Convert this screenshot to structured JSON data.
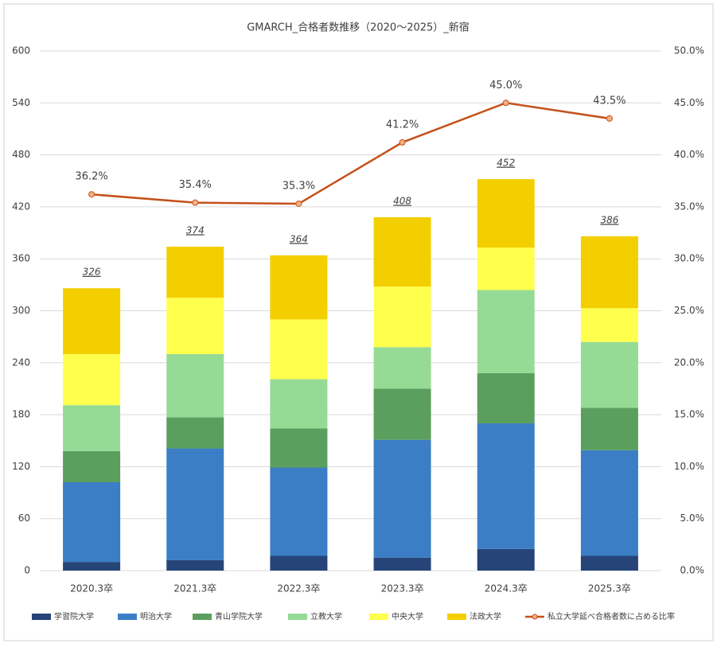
{
  "chart_data": {
    "type": "bar",
    "stacked": true,
    "title": "GMARCH_合格者数推移（2020～2025）_新宿",
    "categories": [
      "2020.3卒",
      "2021.3卒",
      "2022.3卒",
      "2023.3卒",
      "2024.3卒",
      "2025.3卒"
    ],
    "series": [
      {
        "name": "学習院大学",
        "color": "#264478",
        "values": [
          10,
          12,
          17,
          15,
          25,
          17
        ]
      },
      {
        "name": "明治大学",
        "color": "#3b7ec6",
        "values": [
          92,
          129,
          102,
          136,
          145,
          122
        ]
      },
      {
        "name": "青山学院大学",
        "color": "#5a9f5e",
        "values": [
          36,
          36,
          45,
          59,
          58,
          49
        ]
      },
      {
        "name": "立教大学",
        "color": "#95db95",
        "values": [
          53,
          73,
          57,
          48,
          96,
          76
        ]
      },
      {
        "name": "中央大学",
        "color": "#ffff4d",
        "values": [
          59,
          65,
          69,
          70,
          49,
          39
        ]
      },
      {
        "name": "法政大学",
        "color": "#f3cf00",
        "values": [
          76,
          59,
          74,
          80,
          79,
          83
        ]
      },
      {
        "name": "私立大学延べ合格者数に占める比率",
        "color": "#c5511b",
        "type": "line",
        "axis": "y2",
        "values": [
          36.2,
          35.4,
          35.3,
          41.2,
          45.0,
          43.5
        ],
        "value_labels": [
          "36.2%",
          "35.4%",
          "35.3%",
          "41.2%",
          "45.0%",
          "43.5%"
        ]
      }
    ],
    "totals": [
      326,
      374,
      364,
      408,
      452,
      386
    ],
    "ylim": [
      0,
      600
    ],
    "yticks": [
      0,
      60,
      120,
      180,
      240,
      300,
      360,
      420,
      480,
      540,
      600
    ],
    "y2lim": [
      0,
      50
    ],
    "y2ticks": [
      {
        "value": 0,
        "label": "0.0%"
      },
      {
        "value": 5,
        "label": "5.0%"
      },
      {
        "value": 10,
        "label": "10.0%"
      },
      {
        "value": 15,
        "label": "15.0%"
      },
      {
        "value": 20,
        "label": "20.0%"
      },
      {
        "value": 25,
        "label": "25.0%"
      },
      {
        "value": 30,
        "label": "30.0%"
      },
      {
        "value": 35,
        "label": "35.0%"
      },
      {
        "value": 40,
        "label": "40.0%"
      },
      {
        "value": 45,
        "label": "45.0%"
      },
      {
        "value": 50,
        "label": "50.0%"
      }
    ],
    "grid": true,
    "legend": "bottom"
  }
}
